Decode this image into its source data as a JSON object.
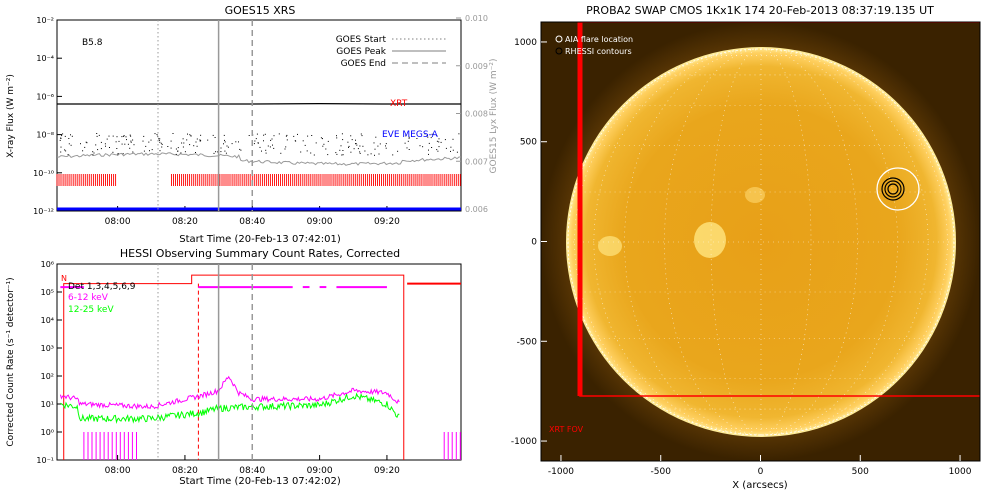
{
  "chart_data": [
    {
      "type": "line",
      "title": "GOES15 XRS",
      "xlabel": "Start Time (20-Feb-13 07:42:01)",
      "ylabel": "X-ray Flux (W m⁻²)",
      "ylabel_right": "GOES15 Lyx Flux (W m⁻²)",
      "x_range": [
        "07:42",
        "09:42"
      ],
      "x_ticks": [
        "08:00",
        "08:20",
        "08:40",
        "09:00",
        "09:20"
      ],
      "y_scale": "log",
      "ylim": [
        1e-12,
        0.01
      ],
      "y_ticks": [
        "10⁻¹²",
        "10⁻¹⁰",
        "10⁻⁸",
        "10⁻⁶",
        "10⁻⁴",
        "10⁻²"
      ],
      "y2_ticks": [
        "0.006",
        "0.007",
        "0.008",
        "0.009",
        "0.010"
      ],
      "class_label": "B5.8",
      "legend": [
        {
          "name": "GOES Start",
          "style": "dotted"
        },
        {
          "name": "GOES Peak",
          "style": "solid"
        },
        {
          "name": "GOES End",
          "style": "dashed"
        }
      ],
      "annotations": [
        {
          "text": "XRT",
          "color": "#ff0000"
        },
        {
          "text": "EVE MEGS-A",
          "color": "#0000ff"
        }
      ],
      "markers": {
        "goes_start": "08:12",
        "goes_peak": "08:30",
        "goes_end": "08:40"
      },
      "series": [
        {
          "name": "XRT",
          "x": [
            "07:42",
            "08:00",
            "08:20",
            "08:40",
            "09:00",
            "09:20",
            "09:42"
          ],
          "y": [
            4e-07,
            4e-07,
            4e-07,
            4e-07,
            4.2e-07,
            4e-07,
            4e-07
          ]
        },
        {
          "name": "EVE MEGS-A",
          "x": [
            "07:42",
            "09:42"
          ],
          "y": [
            1e-12,
            1e-12
          ]
        }
      ]
    },
    {
      "type": "line",
      "title": "HESSI Observing Summary Count Rates, Corrected",
      "xlabel": "Start Time (20-Feb-13 07:42:02)",
      "ylabel": "Corrected Count Rate (s⁻¹ detector⁻¹)",
      "x_range": [
        "07:42",
        "09:42"
      ],
      "x_ticks": [
        "08:00",
        "08:20",
        "08:40",
        "09:00",
        "09:20"
      ],
      "y_scale": "log",
      "ylim": [
        0.1,
        1000000.0
      ],
      "y_ticks": [
        "10⁻¹",
        "10⁰",
        "10¹",
        "10²",
        "10³",
        "10⁴",
        "10⁵",
        "10⁶"
      ],
      "detectors": "Det 1,3,4,5,6,9",
      "flag_label": "N",
      "legend": [
        {
          "name": "6-12 keV",
          "color": "#ff00ff"
        },
        {
          "name": "12-25 keV",
          "color": "#00ff00"
        }
      ],
      "series": [
        {
          "name": "6-12 keV",
          "x": [
            "07:43",
            "07:48",
            "07:49",
            "08:10",
            "08:25",
            "08:30",
            "08:33",
            "08:36",
            "08:40",
            "09:00",
            "09:10",
            "09:20",
            "09:24"
          ],
          "y": [
            20,
            15,
            10,
            8,
            20,
            30,
            100,
            25,
            15,
            15,
            30,
            25,
            10
          ]
        },
        {
          "name": "12-25 keV",
          "x": [
            "07:43",
            "07:48",
            "07:49",
            "08:10",
            "08:25",
            "08:30",
            "08:40",
            "09:00",
            "09:10",
            "09:20",
            "09:24"
          ],
          "y": [
            10,
            8,
            3,
            3,
            5,
            7,
            8,
            9,
            20,
            10,
            3
          ]
        }
      ]
    },
    {
      "type": "image",
      "title": "PROBA2 SWAP CMOS 1Kx1K 174 20-Feb-2013 08:37:19.135 UT",
      "xlabel": "X (arcsecs)",
      "xlim": [
        -1100,
        1100
      ],
      "ylim": [
        -1100,
        1100
      ],
      "x_ticks": [
        "-1000",
        "-500",
        "0",
        "500",
        "1000"
      ],
      "y_ticks": [
        "-1000",
        "-500",
        "0",
        "500",
        "1000"
      ],
      "legend": [
        {
          "name": "AIA flare location",
          "color": "#ffffff"
        },
        {
          "name": "RHESSI contours",
          "color": "#000000"
        }
      ],
      "fov_label": "XRT FOV",
      "fov_color": "#ff0000"
    }
  ]
}
